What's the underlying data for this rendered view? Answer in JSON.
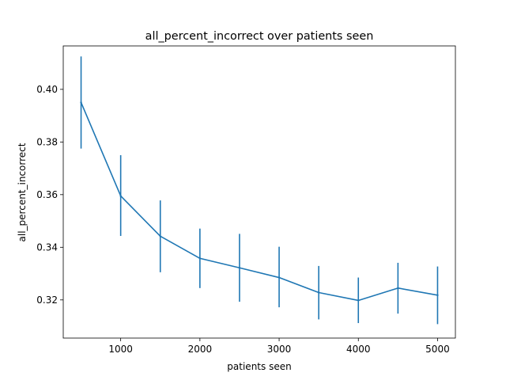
{
  "chart_data": {
    "type": "line",
    "title": "all_percent_incorrect over patients seen",
    "xlabel": "patients seen",
    "ylabel": "all_percent_incorrect",
    "xlim": [
      275,
      5225
    ],
    "ylim": [
      0.3055,
      0.4165
    ],
    "grid": false,
    "x_ticks": [
      1000,
      2000,
      3000,
      4000,
      5000
    ],
    "x_tick_labels": [
      "1000",
      "2000",
      "3000",
      "4000",
      "5000"
    ],
    "y_ticks": [
      0.32,
      0.34,
      0.36,
      0.38,
      0.4
    ],
    "y_tick_labels": [
      "0.32",
      "0.34",
      "0.36",
      "0.38",
      "0.40"
    ],
    "series": [
      {
        "color": "#1f77b4",
        "x": [
          500,
          1000,
          1500,
          2000,
          2500,
          3000,
          3500,
          4000,
          4500,
          5000
        ],
        "y": [
          0.395,
          0.3595,
          0.3442,
          0.3358,
          0.3322,
          0.3285,
          0.3228,
          0.3198,
          0.3245,
          0.3218
        ],
        "y_low": [
          0.3775,
          0.3443,
          0.3305,
          0.3245,
          0.3193,
          0.3172,
          0.3126,
          0.3112,
          0.3148,
          0.3108
        ],
        "y_high": [
          0.4125,
          0.375,
          0.3578,
          0.3471,
          0.3451,
          0.3402,
          0.3329,
          0.3285,
          0.3341,
          0.3327
        ]
      }
    ]
  }
}
